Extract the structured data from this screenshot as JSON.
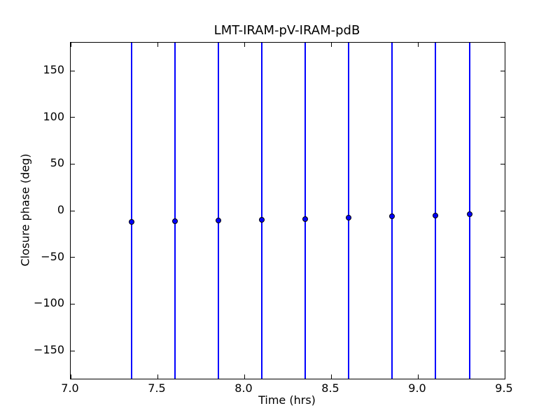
{
  "figure": {
    "title": "LMT-IRAM-pV-IRAM-pdB",
    "xlabel": "Time (hrs)",
    "ylabel": "Closure phase (deg)",
    "background_color": "#ffffff",
    "accent_color": "#0000ff"
  },
  "chart_data": {
    "type": "scatter",
    "title": "LMT-IRAM-pV-IRAM-pdB",
    "xlabel": "Time (hrs)",
    "ylabel": "Closure phase (deg)",
    "xlim": [
      7.0,
      9.5
    ],
    "ylim": [
      -180,
      180
    ],
    "x_ticks": [
      7.0,
      7.5,
      8.0,
      8.5,
      9.0,
      9.5
    ],
    "x_tick_labels": [
      "7.0",
      "7.5",
      "8.0",
      "8.5",
      "9.0",
      "9.5"
    ],
    "y_ticks": [
      150,
      100,
      50,
      0,
      -50,
      -100,
      -150
    ],
    "y_tick_labels": [
      "150",
      "100",
      "50",
      "0",
      "−50",
      "−100",
      "−150"
    ],
    "grid": false,
    "legend": false,
    "tick_direction": "in",
    "ticks_on_all_sides": true,
    "series": [
      {
        "name": "closure phase",
        "marker": "circle",
        "marker_color": "#0000ff",
        "marker_edge_color": "#000000",
        "line_color": "#0000ff",
        "x": [
          7.35,
          7.6,
          7.85,
          8.1,
          8.35,
          8.6,
          8.85,
          9.1,
          9.3
        ],
        "y": [
          -12.2,
          -11.5,
          -10.7,
          -9.5,
          -8.8,
          -7.5,
          -5.8,
          -5.0,
          -4.0
        ],
        "error_bars": {
          "visible": true,
          "orientation": "vertical",
          "span": [
            -180,
            180
          ],
          "note": "error bars extend beyond the y-axis limits and are clipped at the plot box"
        }
      }
    ]
  }
}
